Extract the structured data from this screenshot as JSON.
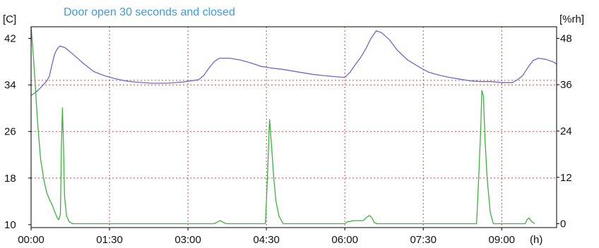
{
  "chart_data": {
    "type": "line",
    "title": "Door open 30 seconds and closed",
    "y_left_label": "[C]",
    "y_right_label": "[%rh]",
    "x_unit_label": "(h)",
    "xlim": [
      0,
      10.05
    ],
    "y_left_lim": [
      9.5,
      44
    ],
    "y_right_lim": [
      -1,
      51
    ],
    "x_ticks": [
      {
        "value": 0,
        "label": "00:00"
      },
      {
        "value": 1.5,
        "label": "01:30"
      },
      {
        "value": 3,
        "label": "03:00"
      },
      {
        "value": 4.5,
        "label": "04:30"
      },
      {
        "value": 6,
        "label": "06:00"
      },
      {
        "value": 7.5,
        "label": "07:30"
      },
      {
        "value": 9,
        "label": "09:00"
      }
    ],
    "y_left_ticks": [
      10,
      18,
      26,
      34,
      42
    ],
    "y_right_ticks": [
      0,
      12,
      24,
      36,
      48
    ],
    "grid": true,
    "grid_x": [
      1.5,
      3,
      4.5,
      6,
      7.5,
      9
    ],
    "grid_y_left": [
      18,
      26,
      34
    ],
    "reference_line_left": 34.8,
    "series": [
      {
        "axis": "left",
        "unit": "C",
        "color": "#6a6acf",
        "points": [
          [
            0,
            32.2
          ],
          [
            0.1,
            32.8
          ],
          [
            0.2,
            33.7
          ],
          [
            0.3,
            34.7
          ],
          [
            0.35,
            35.5
          ],
          [
            0.4,
            37.5
          ],
          [
            0.45,
            39.3
          ],
          [
            0.5,
            40.2
          ],
          [
            0.55,
            40.7
          ],
          [
            0.65,
            40.4
          ],
          [
            0.8,
            39.3
          ],
          [
            1.0,
            37.7
          ],
          [
            1.2,
            36.3
          ],
          [
            1.4,
            35.6
          ],
          [
            1.6,
            35.1
          ],
          [
            1.8,
            34.7
          ],
          [
            2.0,
            34.5
          ],
          [
            2.3,
            34.3
          ],
          [
            2.6,
            34.3
          ],
          [
            2.9,
            34.5
          ],
          [
            3.05,
            34.7
          ],
          [
            3.2,
            34.9
          ],
          [
            3.3,
            35.6
          ],
          [
            3.4,
            36.9
          ],
          [
            3.5,
            38.0
          ],
          [
            3.6,
            38.6
          ],
          [
            3.8,
            38.6
          ],
          [
            4.0,
            38.3
          ],
          [
            4.2,
            37.8
          ],
          [
            4.4,
            37.2
          ],
          [
            4.6,
            36.9
          ],
          [
            4.8,
            36.7
          ],
          [
            5.0,
            36.4
          ],
          [
            5.2,
            36.1
          ],
          [
            5.4,
            35.8
          ],
          [
            5.6,
            35.6
          ],
          [
            5.85,
            35.4
          ],
          [
            6.0,
            35.3
          ],
          [
            6.1,
            36.2
          ],
          [
            6.2,
            37.5
          ],
          [
            6.3,
            38.7
          ],
          [
            6.4,
            40.2
          ],
          [
            6.5,
            42.0
          ],
          [
            6.6,
            43.3
          ],
          [
            6.7,
            43.0
          ],
          [
            6.85,
            41.8
          ],
          [
            7.0,
            40.0
          ],
          [
            7.2,
            38.3
          ],
          [
            7.4,
            37.2
          ],
          [
            7.6,
            36.2
          ],
          [
            7.8,
            35.7
          ],
          [
            8.0,
            35.3
          ],
          [
            8.2,
            35.0
          ],
          [
            8.4,
            34.7
          ],
          [
            8.6,
            34.6
          ],
          [
            8.8,
            34.6
          ],
          [
            9.0,
            34.4
          ],
          [
            9.2,
            34.4
          ],
          [
            9.3,
            34.9
          ],
          [
            9.4,
            35.6
          ],
          [
            9.5,
            37.0
          ],
          [
            9.6,
            38.2
          ],
          [
            9.7,
            38.6
          ],
          [
            9.85,
            38.4
          ],
          [
            10.0,
            37.9
          ],
          [
            10.05,
            37.6
          ]
        ]
      },
      {
        "axis": "right",
        "unit": "%rh",
        "color": "#3cb43c",
        "points": [
          [
            0,
            51
          ],
          [
            0.04,
            44
          ],
          [
            0.08,
            36
          ],
          [
            0.12,
            27
          ],
          [
            0.18,
            17
          ],
          [
            0.25,
            11
          ],
          [
            0.3,
            8
          ],
          [
            0.36,
            6
          ],
          [
            0.4,
            5
          ],
          [
            0.44,
            3.5
          ],
          [
            0.47,
            2.5
          ],
          [
            0.5,
            1.5
          ],
          [
            0.53,
            1
          ],
          [
            0.56,
            2.5
          ],
          [
            0.58,
            20
          ],
          [
            0.6,
            30
          ],
          [
            0.62,
            20
          ],
          [
            0.64,
            7
          ],
          [
            0.68,
            2
          ],
          [
            0.73,
            0.5
          ],
          [
            0.8,
            0
          ],
          [
            3.5,
            0
          ],
          [
            3.62,
            0.8
          ],
          [
            3.68,
            0.3
          ],
          [
            3.74,
            0
          ],
          [
            4.48,
            0
          ],
          [
            4.52,
            12
          ],
          [
            4.56,
            27
          ],
          [
            4.6,
            20
          ],
          [
            4.64,
            12
          ],
          [
            4.68,
            6
          ],
          [
            4.74,
            2
          ],
          [
            4.82,
            0
          ],
          [
            6.0,
            0
          ],
          [
            6.05,
            0.5
          ],
          [
            6.18,
            0.8
          ],
          [
            6.35,
            0.8
          ],
          [
            6.42,
            1.7
          ],
          [
            6.47,
            2.1
          ],
          [
            6.52,
            1.5
          ],
          [
            6.56,
            0.3
          ],
          [
            6.62,
            0
          ],
          [
            8.52,
            0
          ],
          [
            8.56,
            12
          ],
          [
            8.6,
            25
          ],
          [
            8.62,
            34.5
          ],
          [
            8.65,
            33
          ],
          [
            8.68,
            22
          ],
          [
            8.72,
            12
          ],
          [
            8.78,
            3
          ],
          [
            8.84,
            0
          ],
          [
            9.45,
            0
          ],
          [
            9.48,
            1
          ],
          [
            9.52,
            1.5
          ],
          [
            9.57,
            0.6
          ],
          [
            9.63,
            0
          ]
        ]
      }
    ]
  },
  "colors": {
    "title": "#3a9be8",
    "grid": "#c25050",
    "axis": "#000000",
    "temperature_line": "#6a6acf",
    "humidity_line": "#3cb43c"
  }
}
